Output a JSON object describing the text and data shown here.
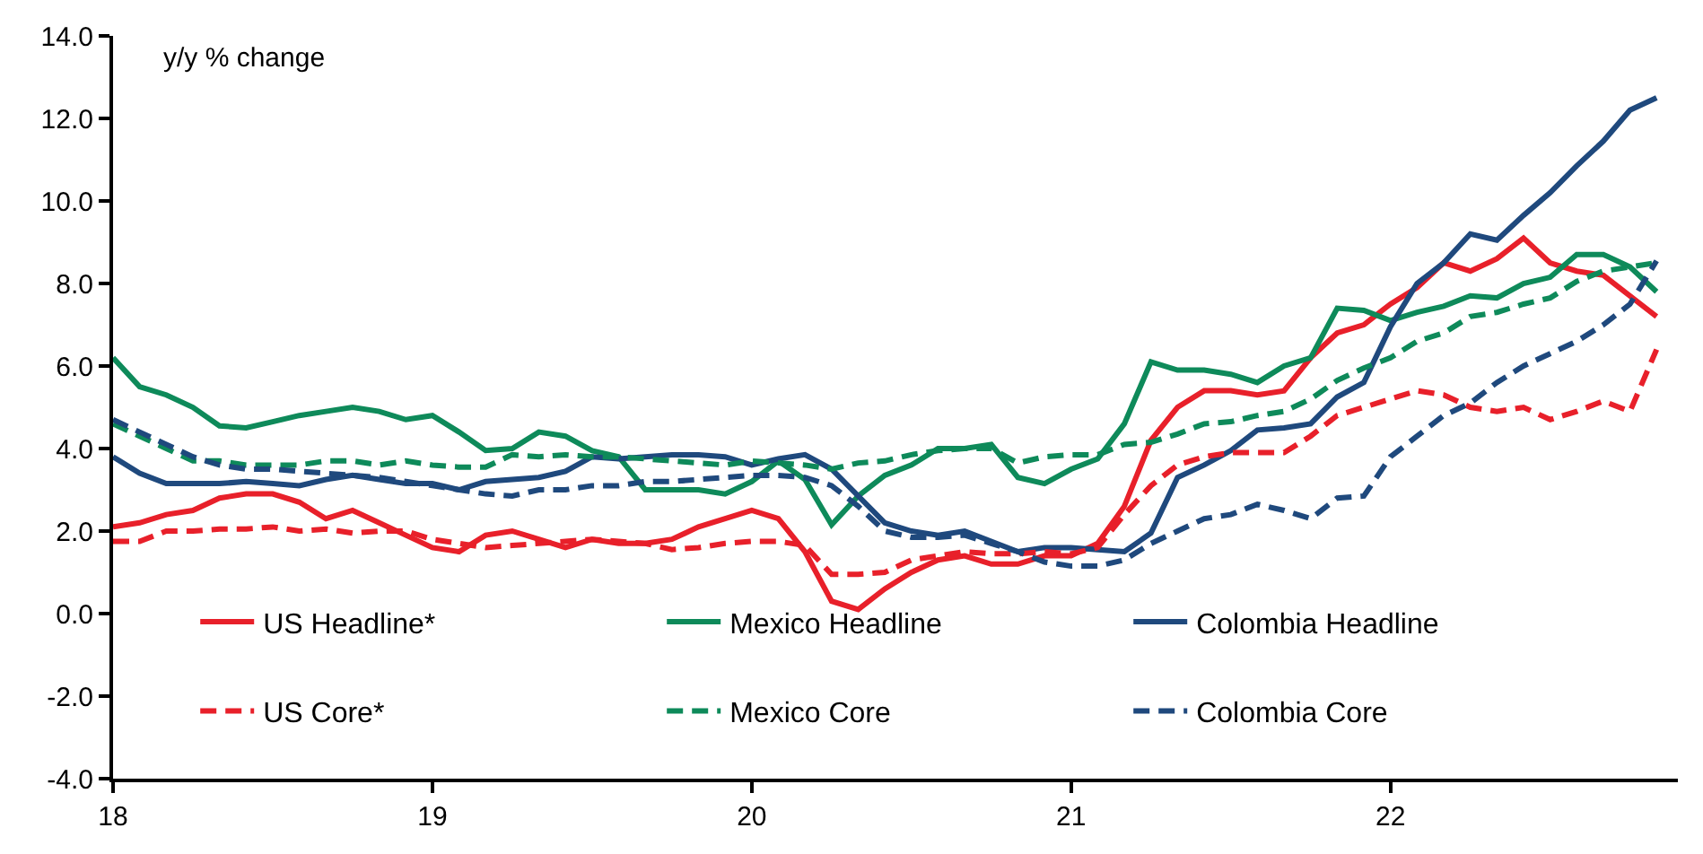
{
  "chart_data": {
    "type": "line",
    "ylabel": "y/y % change",
    "x": [
      2018.0,
      2018.0833,
      2018.1667,
      2018.25,
      2018.3333,
      2018.4167,
      2018.5,
      2018.5833,
      2018.6667,
      2018.75,
      2018.8333,
      2018.9167,
      2019.0,
      2019.0833,
      2019.1667,
      2019.25,
      2019.3333,
      2019.4167,
      2019.5,
      2019.5833,
      2019.6667,
      2019.75,
      2019.8333,
      2019.9167,
      2020.0,
      2020.0833,
      2020.1667,
      2020.25,
      2020.3333,
      2020.4167,
      2020.5,
      2020.5833,
      2020.6667,
      2020.75,
      2020.8333,
      2020.9167,
      2021.0,
      2021.0833,
      2021.1667,
      2021.25,
      2021.3333,
      2021.4167,
      2021.5,
      2021.5833,
      2021.6667,
      2021.75,
      2021.8333,
      2021.9167,
      2022.0,
      2022.0833,
      2022.1667,
      2022.25,
      2022.3333,
      2022.4167,
      2022.5,
      2022.5833,
      2022.6667,
      2022.75,
      2022.8333
    ],
    "series": [
      {
        "name": "US Headline*",
        "color": "#e8202a",
        "line_style": "solid",
        "values": [
          2.1,
          2.2,
          2.4,
          2.5,
          2.8,
          2.9,
          2.9,
          2.7,
          2.3,
          2.5,
          2.2,
          1.9,
          1.6,
          1.5,
          1.9,
          2.0,
          1.8,
          1.6,
          1.8,
          1.7,
          1.7,
          1.8,
          2.1,
          2.3,
          2.5,
          2.3,
          1.5,
          0.3,
          0.1,
          0.6,
          1.0,
          1.3,
          1.4,
          1.2,
          1.2,
          1.4,
          1.4,
          1.7,
          2.6,
          4.2,
          5.0,
          5.4,
          5.4,
          5.3,
          5.4,
          6.2,
          6.8,
          7.0,
          7.5,
          7.9,
          8.5,
          8.3,
          8.6,
          9.1,
          8.5,
          8.3,
          8.2,
          7.7,
          7.2
        ]
      },
      {
        "name": "Mexico Headline",
        "color": "#0e8a5a",
        "line_style": "solid",
        "values": [
          6.2,
          5.5,
          5.3,
          5.0,
          4.55,
          4.5,
          4.65,
          4.8,
          4.9,
          5.0,
          4.9,
          4.7,
          4.8,
          4.4,
          3.95,
          4.0,
          4.4,
          4.3,
          3.95,
          3.8,
          3.0,
          3.0,
          3.0,
          2.9,
          3.2,
          3.7,
          3.25,
          2.15,
          2.85,
          3.35,
          3.6,
          4.0,
          4.0,
          4.1,
          3.3,
          3.15,
          3.5,
          3.75,
          4.6,
          6.1,
          5.9,
          5.9,
          5.8,
          5.6,
          6.0,
          6.2,
          7.4,
          7.35,
          7.1,
          7.3,
          7.45,
          7.7,
          7.65,
          8.0,
          8.15,
          8.7,
          8.7,
          8.4,
          7.8
        ]
      },
      {
        "name": "Colombia Headline",
        "color": "#1f497d",
        "line_style": "solid",
        "values": [
          3.8,
          3.4,
          3.15,
          3.15,
          3.15,
          3.2,
          3.15,
          3.1,
          3.25,
          3.35,
          3.25,
          3.15,
          3.15,
          3.0,
          3.2,
          3.25,
          3.3,
          3.45,
          3.8,
          3.75,
          3.8,
          3.85,
          3.85,
          3.8,
          3.6,
          3.75,
          3.85,
          3.5,
          2.85,
          2.2,
          2.0,
          1.9,
          2.0,
          1.75,
          1.5,
          1.6,
          1.6,
          1.55,
          1.5,
          1.95,
          3.3,
          3.6,
          3.95,
          4.45,
          4.5,
          4.6,
          5.25,
          5.6,
          6.95,
          8.0,
          8.5,
          9.2,
          9.05,
          9.65,
          10.2,
          10.85,
          11.45,
          12.2,
          12.5
        ]
      },
      {
        "name": "US Core*",
        "color": "#e8202a",
        "line_style": "dashed",
        "values": [
          1.75,
          1.75,
          2.0,
          2.0,
          2.05,
          2.05,
          2.1,
          2.0,
          2.05,
          1.95,
          2.0,
          2.0,
          1.8,
          1.7,
          1.6,
          1.65,
          1.7,
          1.75,
          1.8,
          1.75,
          1.7,
          1.55,
          1.6,
          1.7,
          1.75,
          1.75,
          1.65,
          0.95,
          0.95,
          1.0,
          1.3,
          1.4,
          1.5,
          1.45,
          1.45,
          1.5,
          1.45,
          1.6,
          2.4,
          3.1,
          3.6,
          3.8,
          3.9,
          3.9,
          3.9,
          4.3,
          4.8,
          5.0,
          5.2,
          5.4,
          5.3,
          5.0,
          4.9,
          5.0,
          4.7,
          4.9,
          5.15,
          4.9,
          6.4
        ]
      },
      {
        "name": "Mexico Core",
        "color": "#0e8a5a",
        "line_style": "dashed",
        "values": [
          4.6,
          4.3,
          4.0,
          3.7,
          3.7,
          3.6,
          3.6,
          3.6,
          3.7,
          3.7,
          3.6,
          3.7,
          3.6,
          3.55,
          3.55,
          3.85,
          3.8,
          3.85,
          3.8,
          3.8,
          3.75,
          3.7,
          3.65,
          3.6,
          3.7,
          3.65,
          3.6,
          3.5,
          3.65,
          3.7,
          3.85,
          3.95,
          4.0,
          4.0,
          3.65,
          3.8,
          3.85,
          3.85,
          4.1,
          4.15,
          4.35,
          4.6,
          4.65,
          4.8,
          4.9,
          5.2,
          5.65,
          5.95,
          6.2,
          6.6,
          6.8,
          7.2,
          7.3,
          7.5,
          7.65,
          8.05,
          8.3,
          8.4,
          8.5
        ]
      },
      {
        "name": "Colombia Core",
        "color": "#1f497d",
        "line_style": "dashed",
        "values": [
          4.7,
          4.4,
          4.1,
          3.8,
          3.6,
          3.5,
          3.5,
          3.45,
          3.4,
          3.35,
          3.3,
          3.2,
          3.1,
          3.0,
          2.9,
          2.85,
          3.0,
          3.0,
          3.1,
          3.1,
          3.2,
          3.2,
          3.25,
          3.3,
          3.35,
          3.35,
          3.3,
          3.1,
          2.6,
          2.0,
          1.85,
          1.85,
          1.9,
          1.7,
          1.5,
          1.25,
          1.15,
          1.15,
          1.3,
          1.7,
          2.0,
          2.3,
          2.4,
          2.65,
          2.5,
          2.3,
          2.8,
          2.85,
          3.8,
          4.3,
          4.8,
          5.1,
          5.6,
          6.0,
          6.3,
          6.6,
          7.0,
          7.5,
          8.55
        ]
      }
    ],
    "xlim": [
      2018.0,
      2022.9
    ],
    "xticks": [
      {
        "value": 2018,
        "label": "18"
      },
      {
        "value": 2019,
        "label": "19"
      },
      {
        "value": 2020,
        "label": "20"
      },
      {
        "value": 2021,
        "label": "21"
      },
      {
        "value": 2022,
        "label": "22"
      }
    ],
    "ylim": [
      -4,
      14
    ],
    "yticks": [
      {
        "value": -4,
        "label": "-4.0"
      },
      {
        "value": -2,
        "label": "-2.0"
      },
      {
        "value": 0,
        "label": "0.0"
      },
      {
        "value": 2,
        "label": "2.0"
      },
      {
        "value": 4,
        "label": "4.0"
      },
      {
        "value": 6,
        "label": "6.0"
      },
      {
        "value": 8,
        "label": "8.0"
      },
      {
        "value": 10,
        "label": "10.0"
      },
      {
        "value": 12,
        "label": "12.0"
      },
      {
        "value": 14,
        "label": "14.0"
      }
    ],
    "legend": "bottom",
    "marker": "none"
  }
}
